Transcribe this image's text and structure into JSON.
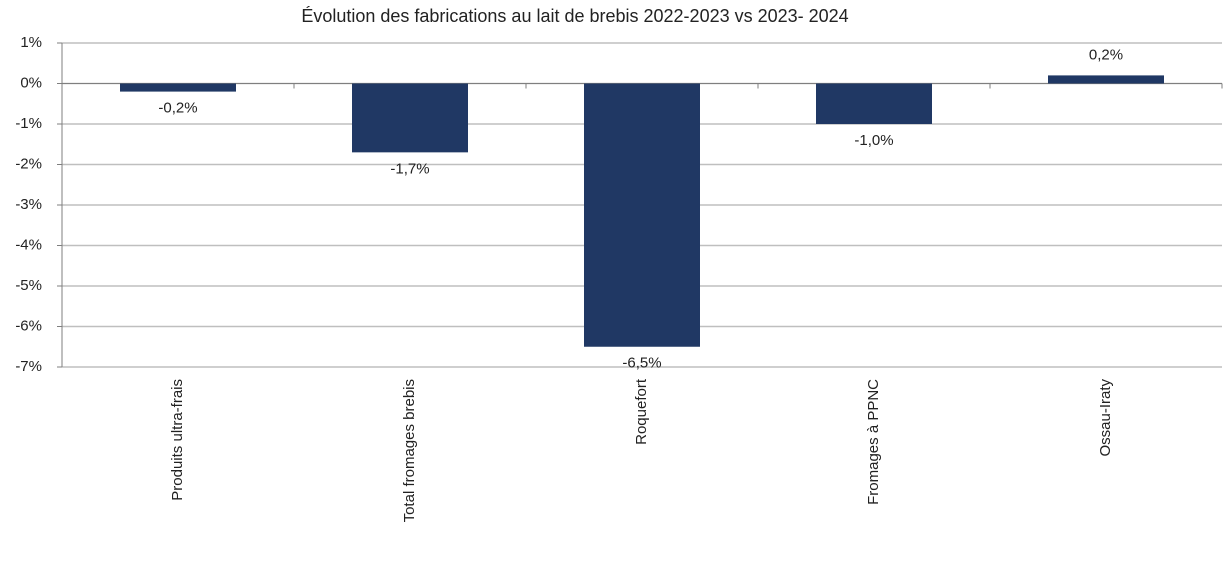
{
  "chart_data": {
    "type": "bar",
    "title": "Évolution des fabrications au lait de brebis  2022-2023 vs 2023- 2024",
    "categories": [
      "Produits ultra-frais",
      "Total fromages brebis",
      "Roquefort",
      "Fromages à PPNC",
      "Ossau-Iraty"
    ],
    "values": [
      -0.2,
      -1.7,
      -6.5,
      -1.0,
      0.2
    ],
    "value_labels": [
      "-0,2%",
      "-1,7%",
      "-6,5%",
      "-1,0%",
      "0,2%"
    ],
    "color": "#203864",
    "ylim": [
      -7,
      1
    ],
    "yticks": [
      {
        "value": 1,
        "label": "1%"
      },
      {
        "value": 0,
        "label": "0%"
      },
      {
        "value": -1,
        "label": "-1%"
      },
      {
        "value": -2,
        "label": "-2%"
      },
      {
        "value": -3,
        "label": "-3%"
      },
      {
        "value": -4,
        "label": "-4%"
      },
      {
        "value": -5,
        "label": "-5%"
      },
      {
        "value": -6,
        "label": "-6%"
      },
      {
        "value": -7,
        "label": "-7%"
      }
    ],
    "grid": true
  }
}
